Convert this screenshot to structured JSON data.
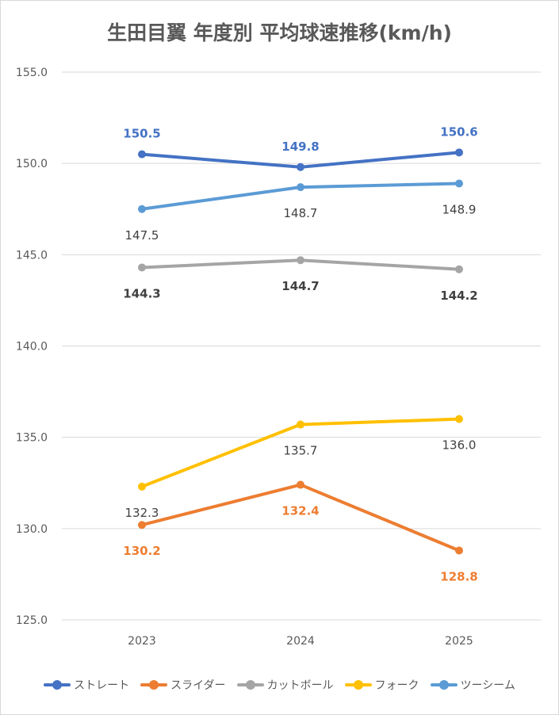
{
  "chart_data": {
    "type": "line",
    "title": "生田目翼 年度別 平均球速推移(km/h)",
    "xlabel": "",
    "ylabel": "",
    "categories": [
      "2023",
      "2024",
      "2025"
    ],
    "ylim": [
      125.0,
      155.0
    ],
    "yticks": [
      "125.0",
      "130.0",
      "135.0",
      "140.0",
      "145.0",
      "150.0",
      "155.0"
    ],
    "grid": true,
    "legend_position": "bottom",
    "series": [
      {
        "name": "ストレート",
        "color": "#4472c4",
        "label_color": "#4472c4",
        "label_bold": true,
        "label_side": "above",
        "values": [
          150.5,
          149.8,
          150.6
        ],
        "labels": [
          "150.5",
          "149.8",
          "150.6"
        ]
      },
      {
        "name": "スライダー",
        "color": "#ed7d31",
        "label_color": "#ed7d31",
        "label_bold": true,
        "label_side": "below",
        "values": [
          130.2,
          132.4,
          128.8
        ],
        "labels": [
          "130.2",
          "132.4",
          "128.8"
        ]
      },
      {
        "name": "カットボール",
        "color": "#a5a5a5",
        "label_color": "#404040",
        "label_bold": true,
        "label_side": "below",
        "values": [
          144.3,
          144.7,
          144.2
        ],
        "labels": [
          "144.3",
          "144.7",
          "144.2"
        ]
      },
      {
        "name": "フォーク",
        "color": "#ffc000",
        "label_color": "#404040",
        "label_bold": false,
        "label_side": "below",
        "values": [
          132.3,
          135.7,
          136.0
        ],
        "labels": [
          "132.3",
          "135.7",
          "136.0"
        ]
      },
      {
        "name": "ツーシーム",
        "color": "#5b9bd5",
        "label_color": "#404040",
        "label_bold": false,
        "label_side": "below",
        "values": [
          147.5,
          148.7,
          148.9
        ],
        "labels": [
          "147.5",
          "148.7",
          "148.9"
        ]
      }
    ]
  }
}
